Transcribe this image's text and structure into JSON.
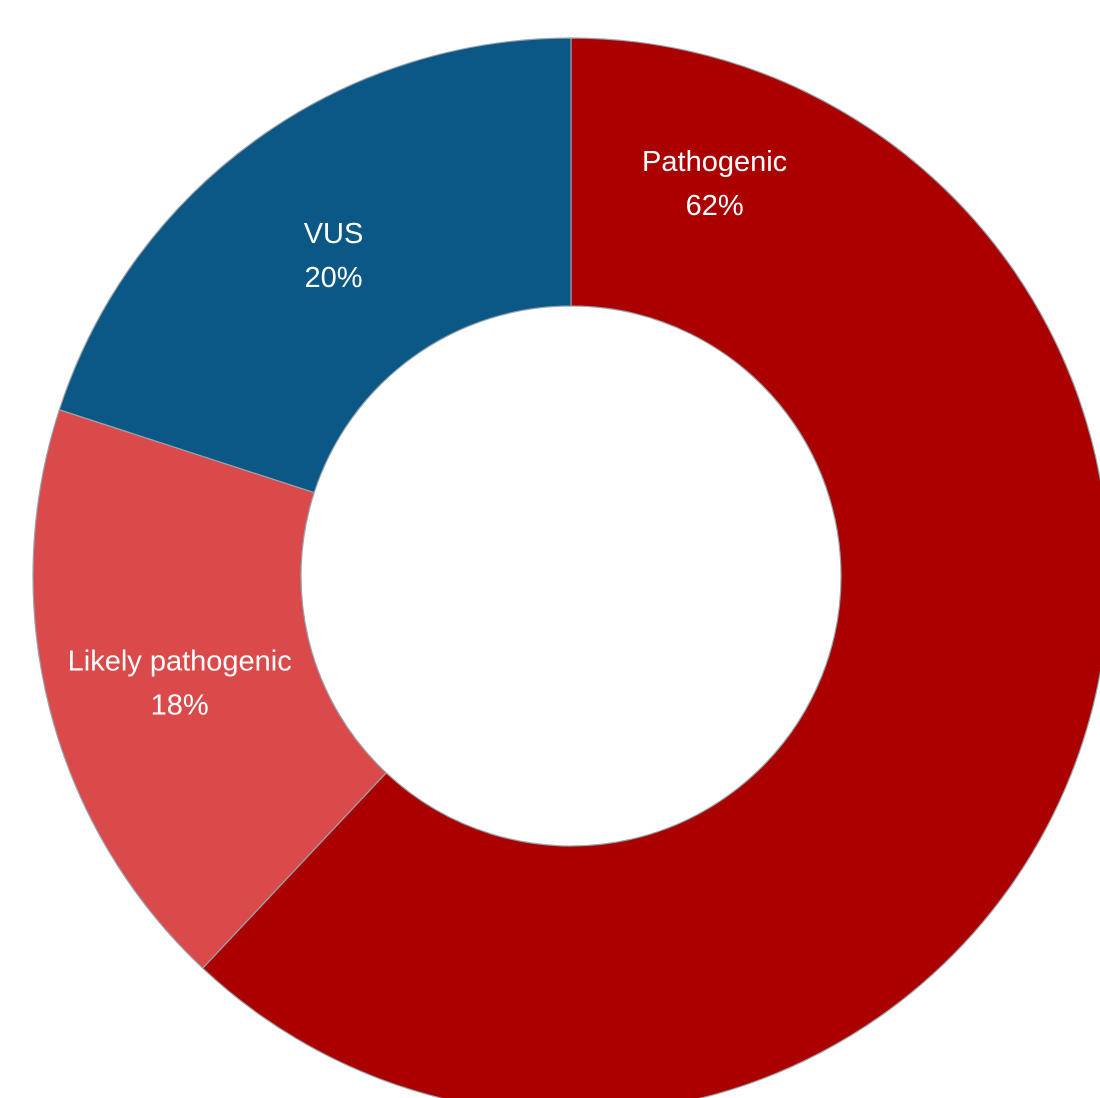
{
  "chart_data": {
    "type": "pie",
    "style": "donut",
    "start_at": "top",
    "direction": "clockwise",
    "slices": [
      {
        "name": "Pathogenic",
        "value": 62,
        "percent_label": "62%",
        "color": "#AA0000"
      },
      {
        "name": "Likely pathogenic",
        "value": 18,
        "percent_label": "18%",
        "color": "#DA4A4A"
      },
      {
        "name": "VUS",
        "value": 20,
        "percent_label": "20%",
        "color": "#0B5785"
      }
    ]
  }
}
